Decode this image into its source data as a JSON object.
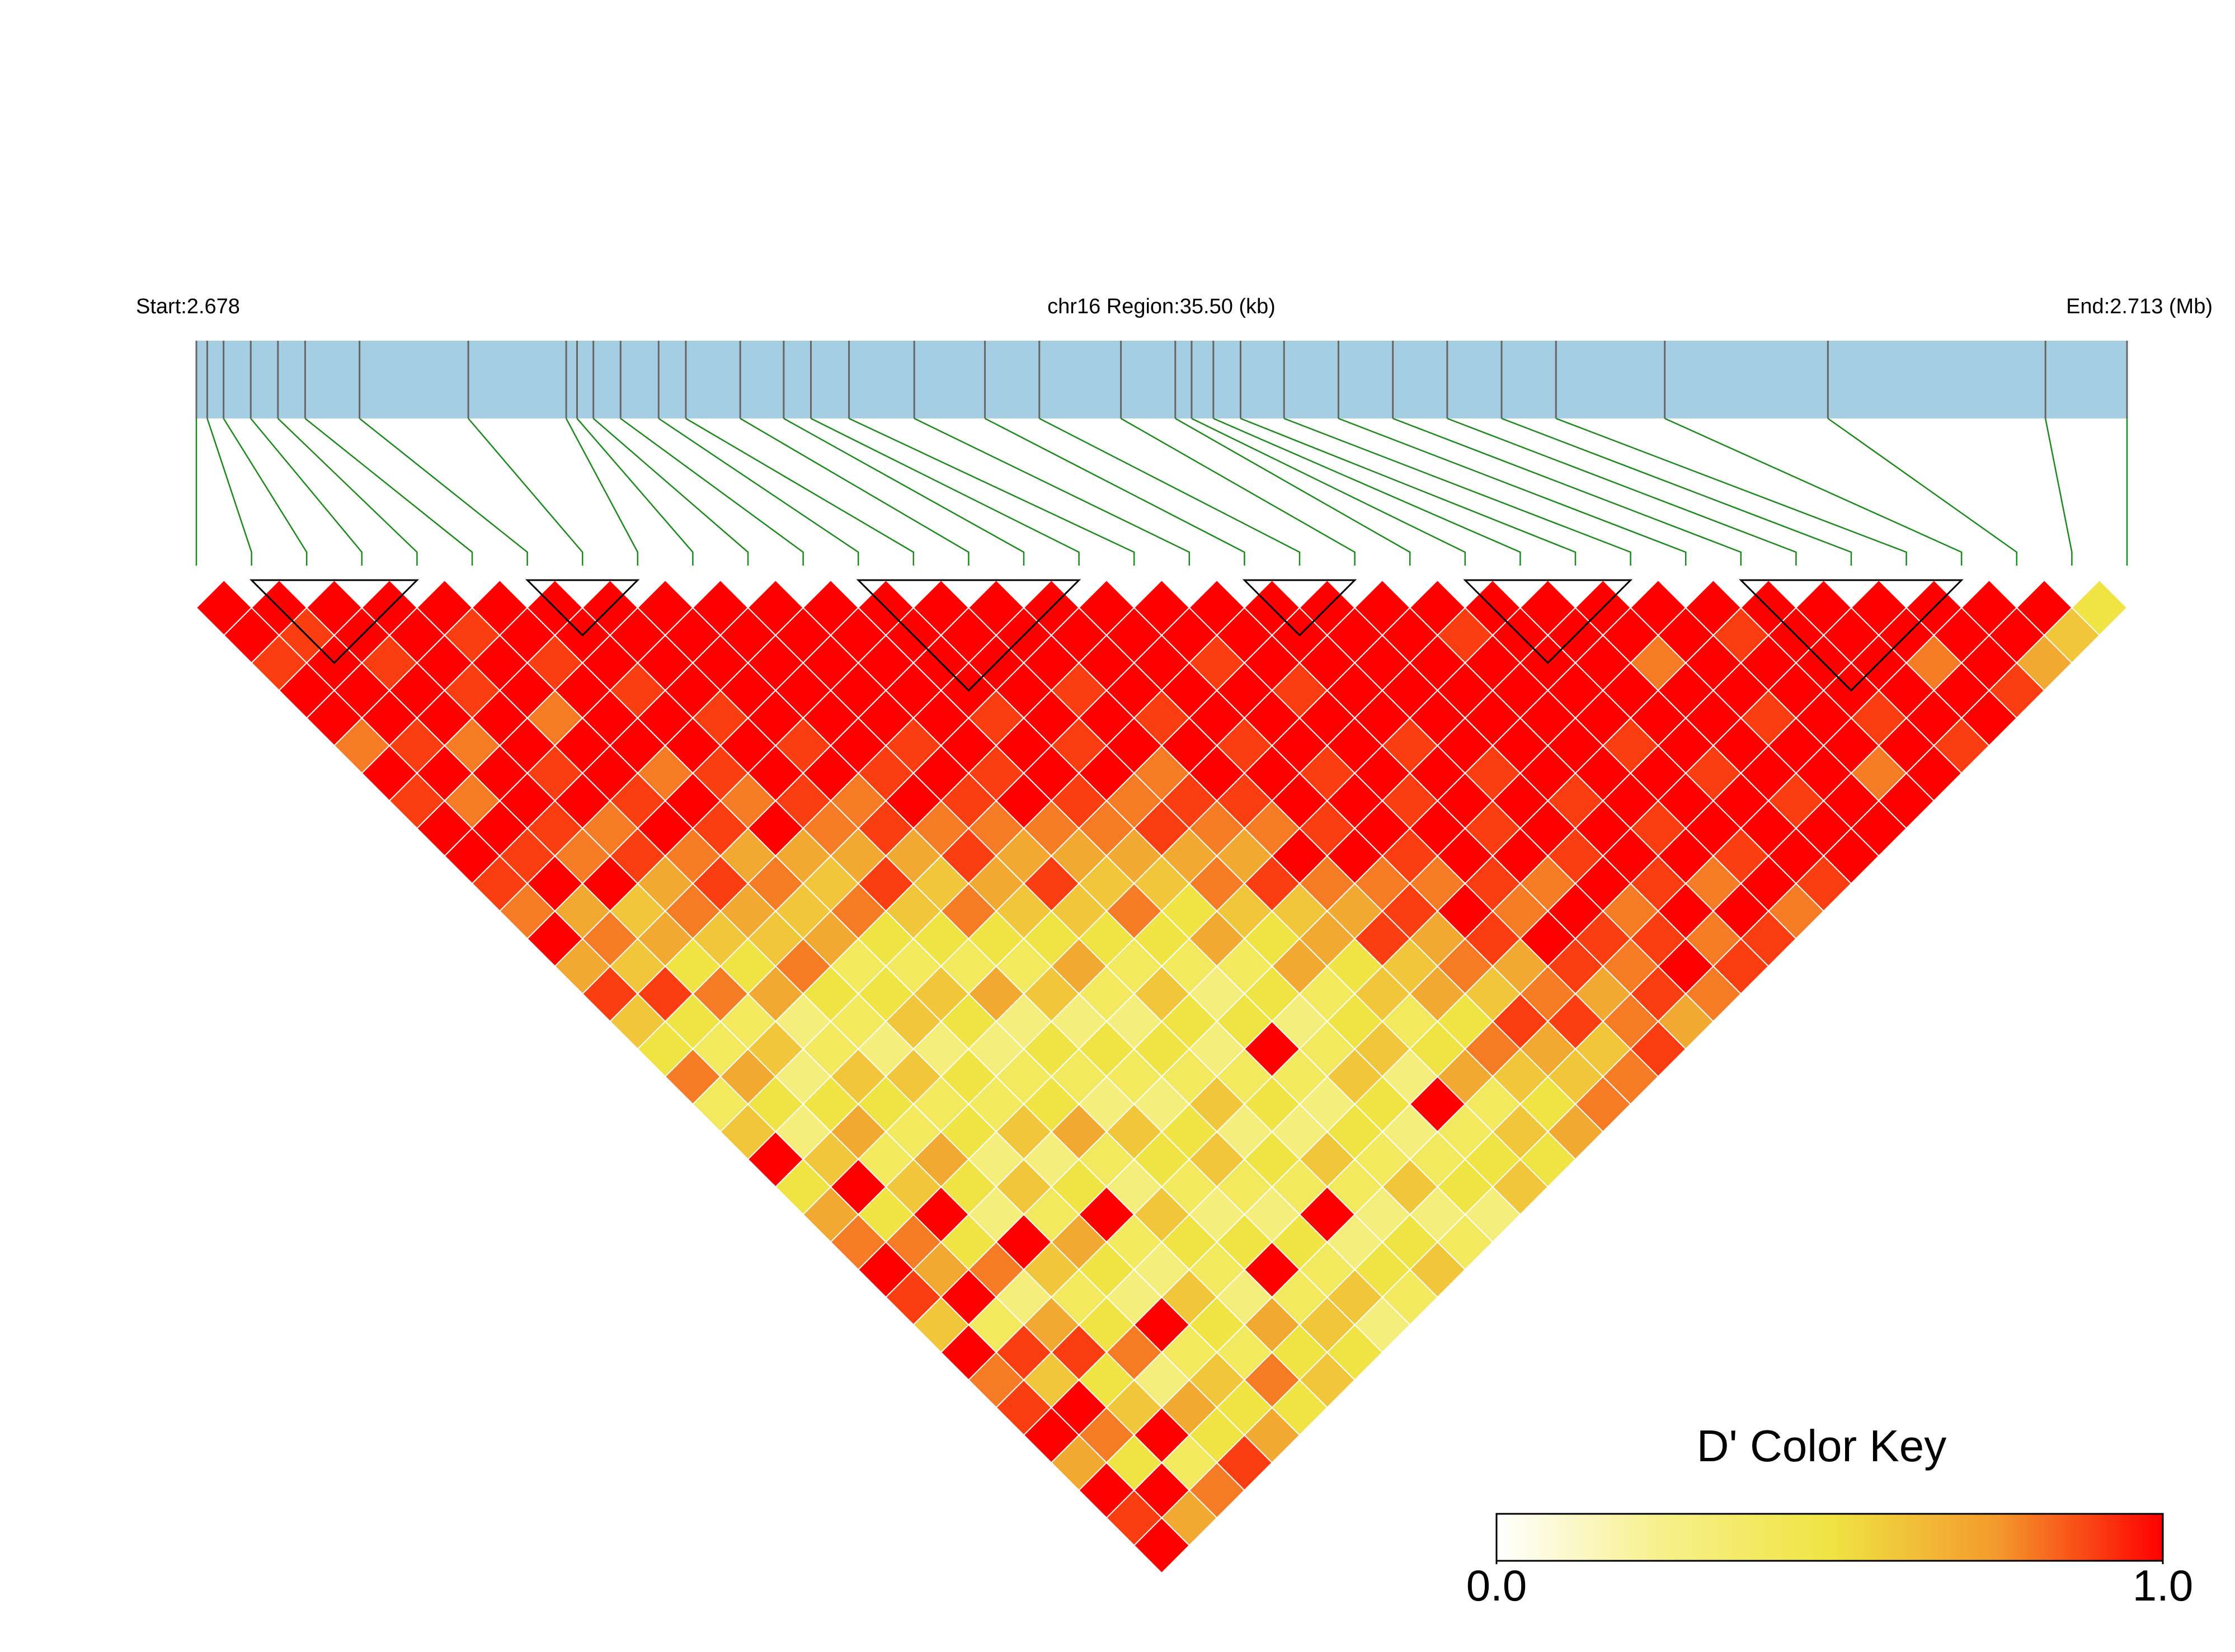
{
  "chart_data": {
    "type": "ld_heatmap",
    "region_start": "Start:2.678",
    "region_title": "chr16 Region:35.50 (kb)",
    "region_end": "End:2.713 (Mb)",
    "xlim": [
      2.678,
      2.7135
    ],
    "positions": [
      2.678,
      2.6782,
      2.6785,
      2.679,
      2.6795,
      2.68,
      2.681,
      2.683,
      2.6848,
      2.685,
      2.6853,
      2.6858,
      2.6865,
      2.687,
      2.688,
      2.6888,
      2.6893,
      2.69,
      2.6912,
      2.6925,
      2.6935,
      2.695,
      2.696,
      2.6963,
      2.6967,
      2.6972,
      2.698,
      2.699,
      2.7,
      2.701,
      2.702,
      2.703,
      2.705,
      2.708,
      2.712,
      2.7135
    ],
    "ld": [
      [
        1,
        1,
        0.9,
        1,
        1,
        0.8,
        1,
        0.9,
        1,
        1,
        0.9,
        0.8,
        1,
        0.7,
        0.9,
        0.6,
        0.5,
        0.8,
        0.4,
        0.6,
        1,
        0.5,
        0.7,
        0.8,
        1,
        0.9,
        0.6,
        1,
        0.8,
        0.9,
        1,
        0.7,
        1,
        0.9,
        1
      ],
      [
        1,
        0.9,
        1,
        1,
        1,
        0.9,
        1,
        0.8,
        1,
        0.9,
        1,
        0.7,
        0.8,
        0.6,
        0.9,
        0.5,
        0.4,
        0.7,
        0.5,
        0.3,
        0.6,
        1,
        0.5,
        0.8,
        0.7,
        1,
        0.4,
        0.9,
        0.6,
        1,
        0.8,
        0.5,
        1,
        0.7
      ],
      [
        1,
        1,
        0.9,
        1,
        1,
        0.8,
        1,
        1,
        0.9,
        0.8,
        1,
        0.6,
        0.7,
        0.5,
        0.8,
        0.4,
        0.6,
        0.3,
        0.5,
        0.7,
        0.4,
        0.6,
        1,
        0.5,
        0.8,
        0.3,
        0.7,
        0.9,
        0.5,
        0.6,
        1,
        0.4,
        0.8
      ],
      [
        1,
        1,
        1,
        0.9,
        1,
        1,
        0.9,
        1,
        0.8,
        0.9,
        0.7,
        0.8,
        0.6,
        0.5,
        0.7,
        0.3,
        0.4,
        0.6,
        0.5,
        0.4,
        0.7,
        0.5,
        0.3,
        1,
        0.6,
        0.4,
        0.5,
        0.8,
        0.3,
        0.7,
        0.5,
        0.9
      ],
      [
        1,
        0.9,
        1,
        1,
        0.8,
        1,
        1,
        0.9,
        1,
        0.8,
        0.9,
        0.7,
        0.6,
        0.8,
        0.5,
        0.4,
        0.3,
        0.6,
        0.4,
        0.5,
        0.3,
        0.6,
        0.4,
        0.7,
        0.5,
        0.3,
        1,
        0.4,
        0.6,
        0.5,
        0.7
      ],
      [
        1,
        1,
        0.9,
        1,
        1,
        1,
        0.8,
        1,
        0.9,
        0.7,
        0.8,
        0.6,
        0.7,
        0.4,
        0.5,
        0.6,
        0.3,
        0.5,
        0.4,
        0.6,
        0.3,
        0.5,
        1,
        0.4,
        0.3,
        0.6,
        0.5,
        0.4,
        0.8,
        0.5
      ],
      [
        1,
        1,
        1,
        0.9,
        1,
        1,
        0.9,
        0.8,
        1,
        0.7,
        0.6,
        0.8,
        0.5,
        0.4,
        0.6,
        0.5,
        0.3,
        0.4,
        0.5,
        0.7,
        0.4,
        0.3,
        0.6,
        0.5,
        0.4,
        0.3,
        0.7,
        0.5,
        0.6
      ],
      [
        1,
        1,
        1,
        1,
        0.9,
        1,
        1,
        0.9,
        0.8,
        0.7,
        0.9,
        0.6,
        0.5,
        0.4,
        0.7,
        0.3,
        0.5,
        0.4,
        0.3,
        0.6,
        0.5,
        0.4,
        0.3,
        0.5,
        1,
        0.4,
        0.6,
        0.5
      ],
      [
        1,
        1,
        1,
        1,
        1,
        0.9,
        1,
        0.8,
        0.9,
        0.7,
        0.6,
        0.8,
        0.5,
        0.4,
        0.6,
        0.3,
        0.5,
        0.4,
        0.3,
        0.5,
        0.6,
        0.4,
        0.3,
        0.5,
        0.4,
        0.6,
        0.3
      ],
      [
        1,
        1,
        1,
        1,
        1,
        1,
        0.9,
        1,
        0.8,
        0.9,
        0.7,
        0.6,
        0.5,
        0.7,
        0.4,
        0.3,
        0.5,
        0.4,
        0.6,
        0.3,
        0.5,
        0.4,
        1,
        0.3,
        0.5,
        0.4
      ],
      [
        1,
        1,
        1,
        1,
        1,
        0.9,
        1,
        0.9,
        0.8,
        0.7,
        0.9,
        0.6,
        0.5,
        0.4,
        0.6,
        0.5,
        0.3,
        0.4,
        0.5,
        0.3,
        0.6,
        0.4,
        0.3,
        0.5,
        0.6
      ],
      [
        1,
        1,
        1,
        1,
        1,
        1,
        0.9,
        1,
        0.8,
        0.7,
        0.6,
        0.8,
        0.5,
        0.4,
        0.3,
        0.5,
        1,
        0.4,
        0.3,
        0.5,
        0.4,
        0.6,
        0.3,
        0.4
      ],
      [
        1,
        1,
        1,
        1,
        0.9,
        1,
        1,
        0.9,
        0.8,
        0.7,
        0.6,
        0.5,
        0.7,
        0.4,
        0.5,
        0.3,
        0.4,
        0.6,
        0.5,
        0.3,
        0.4,
        0.5,
        0.3
      ],
      [
        1,
        1,
        1,
        1,
        1,
        0.9,
        1,
        0.8,
        0.9,
        0.7,
        0.8,
        0.6,
        0.5,
        0.7,
        0.4,
        0.5,
        0.6,
        0.3,
        1,
        0.4,
        0.5,
        0.6
      ],
      [
        1,
        1,
        1,
        0.9,
        1,
        1,
        0.8,
        0.9,
        0.8,
        0.7,
        0.9,
        0.6,
        0.7,
        0.5,
        0.6,
        0.4,
        0.5,
        0.7,
        0.4,
        0.6,
        0.5
      ],
      [
        1,
        1,
        1,
        1,
        0.9,
        1,
        1,
        0.9,
        0.8,
        1,
        0.8,
        0.7,
        0.9,
        0.6,
        0.7,
        0.5,
        0.8,
        0.6,
        0.5,
        0.7
      ],
      [
        1,
        1,
        1,
        1,
        1,
        0.9,
        1,
        1,
        0.9,
        1,
        0.8,
        0.9,
        0.7,
        0.8,
        0.6,
        0.9,
        0.7,
        0.6,
        0.8
      ],
      [
        1,
        1,
        0.9,
        1,
        1,
        1,
        0.9,
        1,
        1,
        0.9,
        0.8,
        1,
        0.9,
        0.7,
        0.8,
        0.9,
        0.6,
        0.8
      ],
      [
        1,
        1,
        1,
        0.9,
        1,
        1,
        1,
        0.9,
        1,
        1,
        0.9,
        0.8,
        1,
        0.9,
        0.7,
        0.8,
        0.9
      ],
      [
        1,
        1,
        1,
        1,
        1,
        0.9,
        1,
        1,
        0.9,
        1,
        0.8,
        1,
        0.9,
        0.8,
        0.9,
        0.7
      ],
      [
        1,
        1,
        1,
        1,
        1,
        1,
        0.9,
        1,
        1,
        0.9,
        1,
        0.8,
        0.9,
        1,
        0.8
      ],
      [
        1,
        1,
        1,
        1,
        1,
        1,
        1,
        0.9,
        1,
        1,
        0.9,
        1,
        0.8,
        0.9
      ],
      [
        1,
        0.9,
        1,
        1,
        1,
        1,
        1,
        1,
        0.9,
        1,
        0.8,
        1,
        0.9
      ],
      [
        1,
        1,
        1,
        1,
        1,
        0.9,
        1,
        1,
        1,
        0.9,
        1,
        0.8
      ],
      [
        1,
        1,
        1,
        1,
        1,
        1,
        0.9,
        1,
        1,
        1,
        0.9
      ],
      [
        1,
        1,
        0.8,
        1,
        1,
        1,
        1,
        0.9,
        1,
        1
      ],
      [
        1,
        1,
        1,
        1,
        0.9,
        1,
        1,
        1,
        1
      ],
      [
        1,
        0.9,
        1,
        1,
        1,
        1,
        0.8,
        1
      ],
      [
        1,
        1,
        1,
        1,
        0.9,
        1,
        1
      ],
      [
        1,
        1,
        1,
        1,
        1,
        0.9
      ],
      [
        1,
        1,
        0.8,
        1,
        1
      ],
      [
        1,
        1,
        1,
        0.9
      ],
      [
        1,
        1,
        0.7
      ],
      [
        1,
        0.6
      ],
      [
        0.5
      ]
    ],
    "blocks": [
      [
        1,
        4
      ],
      [
        6,
        8
      ],
      [
        12,
        16
      ],
      [
        19,
        21
      ],
      [
        23,
        26
      ],
      [
        28,
        32
      ]
    ],
    "bar_color": "#a6cee3",
    "marker_color": "#666666",
    "line_color": "#1a8a1a",
    "block_color": "#000000",
    "color_key": {
      "title": "D' Color Key",
      "lim": [
        0,
        1
      ],
      "ticks": [
        {
          "value": 0,
          "label": "0.0"
        },
        {
          "value": 1,
          "label": "1.0"
        }
      ],
      "colors": [
        "#ffffff",
        "#f7f08a",
        "#efe443",
        "#f39a2d",
        "#ff0000"
      ]
    }
  }
}
